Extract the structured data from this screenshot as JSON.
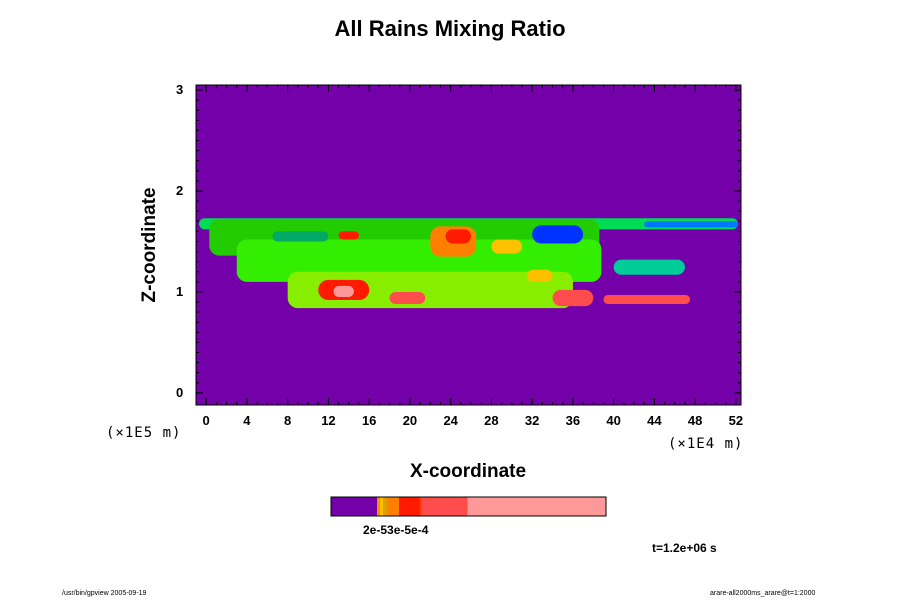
{
  "chart_data": {
    "type": "heatmap",
    "title": "All Rains Mixing Ratio",
    "xlabel": "X-coordinate",
    "ylabel": "Z-coordinate",
    "x_unit": "(×1E4 m)",
    "y_unit": "(×1E5 m)",
    "x_ticks": [
      "0",
      "4",
      "8",
      "12",
      "16",
      "20",
      "24",
      "28",
      "32",
      "36",
      "40",
      "44",
      "48",
      "52"
    ],
    "y_ticks": [
      "0",
      "1",
      "2",
      "3"
    ],
    "xlim": [
      -1,
      52.5
    ],
    "ylim": [
      -0.12,
      3.05
    ],
    "background_color": "#7300a8",
    "colorbar_labels": "2e-53e-5e-4",
    "colorbar_colors": [
      "#7300a8",
      "#ffc000",
      "#ff8000",
      "#ff1a00",
      "#ff4d4d",
      "#ff9999"
    ],
    "grid": false,
    "bands": [
      {
        "x0": -0.7,
        "x1": 52.2,
        "y0": 1.62,
        "y1": 1.73,
        "color": "#00dd55"
      },
      {
        "x0": 0.3,
        "x1": 38.6,
        "y0": 1.36,
        "y1": 1.72,
        "color": "#22cc00"
      },
      {
        "x0": 3.0,
        "x1": 38.8,
        "y0": 1.1,
        "y1": 1.52,
        "color": "#33ee00"
      },
      {
        "x0": 8.0,
        "x1": 36.0,
        "y0": 0.84,
        "y1": 1.2,
        "color": "#88ee00"
      },
      {
        "x0": 40.0,
        "x1": 47.0,
        "y0": 1.17,
        "y1": 1.32,
        "color": "#00cc99"
      },
      {
        "x0": 22.0,
        "x1": 26.5,
        "y0": 1.35,
        "y1": 1.65,
        "color": "#ff8000"
      },
      {
        "x0": 23.5,
        "x1": 26.0,
        "y0": 1.48,
        "y1": 1.62,
        "color": "#ff1a00"
      },
      {
        "x0": 11.0,
        "x1": 16.0,
        "y0": 0.92,
        "y1": 1.12,
        "color": "#ff1a00"
      },
      {
        "x0": 12.5,
        "x1": 14.5,
        "y0": 0.95,
        "y1": 1.06,
        "color": "#ff9999"
      },
      {
        "x0": 18.0,
        "x1": 21.5,
        "y0": 0.88,
        "y1": 1.0,
        "color": "#ff4d4d"
      },
      {
        "x0": 34.0,
        "x1": 38.0,
        "y0": 0.86,
        "y1": 1.02,
        "color": "#ff4d4d"
      },
      {
        "x0": 39.0,
        "x1": 47.5,
        "y0": 0.88,
        "y1": 0.97,
        "color": "#ff4d4d"
      },
      {
        "x0": 13.0,
        "x1": 15.0,
        "y0": 1.52,
        "y1": 1.6,
        "color": "#ff1a00"
      },
      {
        "x0": 28.0,
        "x1": 31.0,
        "y0": 1.38,
        "y1": 1.52,
        "color": "#ffc000"
      },
      {
        "x0": 31.5,
        "x1": 34.0,
        "y0": 1.1,
        "y1": 1.22,
        "color": "#ffc000"
      },
      {
        "x0": 6.5,
        "x1": 12.0,
        "y0": 1.5,
        "y1": 1.6,
        "color": "#00aa66"
      },
      {
        "x0": 32.0,
        "x1": 37.0,
        "y0": 1.48,
        "y1": 1.66,
        "color": "#0033ff"
      },
      {
        "x0": 43.0,
        "x1": 52.2,
        "y0": 1.64,
        "y1": 1.7,
        "color": "#0077ff"
      }
    ]
  },
  "time_label": "t=1.2e+06 s",
  "footer_left": "/usr/bin/gpview 2005-09-19",
  "footer_right": "arare-all2000ms_arare@t=1:2000"
}
